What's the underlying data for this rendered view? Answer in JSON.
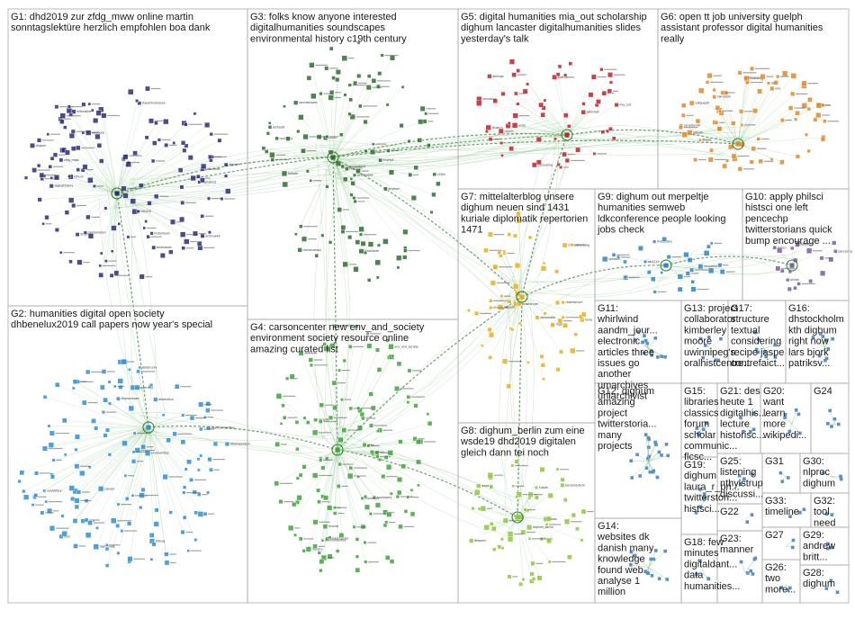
{
  "colors": {
    "border": "#aaaaaa",
    "edge": "#8dc68d",
    "edge_dark": "#2f7a2f",
    "g1": "#2b2d7a",
    "g2": "#2f8fd6",
    "g3": "#2f6e2f",
    "g4": "#3fa53a",
    "g5": "#c0202a",
    "g6": "#e08a2a",
    "g7": "#e6b21e",
    "g8": "#8cc83c",
    "g9": "#2e86c1",
    "g10": "#7a5ca0",
    "misc": "#5b8fc7"
  },
  "groups": [
    {
      "id": "g1",
      "title": [
        "G1: dhd2019 zur zfdg_mww online martin",
        "sonntagslektüre herzlich empfohlen boa dank"
      ]
    },
    {
      "id": "g2",
      "title": [
        "G2: humanities digital open society",
        "dhbenelux2019 call papers now year's special"
      ]
    },
    {
      "id": "g3",
      "title": [
        "G3: folks know anyone interested",
        "digitalhumanities soundscapes",
        "environmental history c19th century"
      ]
    },
    {
      "id": "g4",
      "title": [
        "G4: carsoncenter new env_and_society",
        "environment society resource online",
        "amazing curated list"
      ]
    },
    {
      "id": "g5",
      "title": [
        "G5: digital humanities mia_out scholarship",
        "dighum lancaster digitalhumanities slides",
        "yesterday's talk"
      ]
    },
    {
      "id": "g6",
      "title": [
        "G6: open tt job university guelph",
        "assistant professor digital humanities",
        "really"
      ]
    },
    {
      "id": "g7",
      "title": [
        "G7: mittelalterblog unsere",
        "dighum neuen sind 1431",
        "kuriale diplomatik repertorien",
        "1471"
      ]
    },
    {
      "id": "g8",
      "title": [
        "G8: dighum_berlin zum eine",
        "wsde19 dhd2019 digitalen",
        "gleich dann tei noch"
      ]
    },
    {
      "id": "g9",
      "title": [
        "G9: dighum out merpeltje",
        "humanities semweb",
        "ldkconference people looking",
        "jobs check"
      ]
    },
    {
      "id": "g10",
      "title": [
        "G10: apply philsci",
        "histsci one left",
        "pencechp",
        "twitterstorians quick",
        "bump encourage ..."
      ]
    },
    {
      "id": "g11",
      "title": [
        "G11:",
        "whirlwind",
        "aandm_jour...",
        "electronic",
        "articles three",
        "issues go",
        "another",
        "umarchives",
        "uniarchivist"
      ]
    },
    {
      "id": "g12",
      "title": [
        "G12: dighum",
        "amazing",
        "project",
        "twitterstoria...",
        "many",
        "projects"
      ]
    },
    {
      "id": "g13",
      "title": [
        "G13: project",
        "collaborator",
        "kimberley",
        "moore",
        "uwinnipeg's",
        "oralhistcentre..."
      ]
    },
    {
      "id": "g14",
      "title": [
        "G14:",
        "websites dk",
        "danish many",
        "knowledge",
        "found web",
        "analyse 1",
        "million"
      ]
    },
    {
      "id": "g15",
      "title": [
        "G15:",
        "libraries",
        "classics",
        "forum",
        "scholar",
        "communic...",
        "flcsc..."
      ]
    },
    {
      "id": "g16",
      "title": [
        "G16:",
        "dhstockholm",
        "kth dighum",
        "right now",
        "lars bjork",
        "patriksv..."
      ]
    },
    {
      "id": "g17",
      "title": [
        "G17:",
        "structure",
        "textual",
        "considering",
        "recipe jaspe",
        "contrefaict..."
      ]
    },
    {
      "id": "g18",
      "title": [
        "G18: few",
        "minutes",
        "digitaldant...",
        "data",
        "humanities..."
      ]
    },
    {
      "id": "g19",
      "title": [
        "G19:",
        "dighum",
        "laura_r_pri...",
        "twitterstori...",
        "histsci..."
      ]
    },
    {
      "id": "g20",
      "title": [
        "G20:",
        "want",
        "learn",
        "more",
        "wikipedi..."
      ]
    },
    {
      "id": "g21",
      "title": [
        "G21: des",
        "heute 1",
        "digitalhis...",
        "lecture",
        "historisc..."
      ]
    },
    {
      "id": "g22",
      "title": [
        "G22"
      ]
    },
    {
      "id": "g23",
      "title": [
        "G23:",
        "manner"
      ]
    },
    {
      "id": "g24",
      "title": [
        "G24"
      ]
    },
    {
      "id": "g25",
      "title": [
        "G25:",
        "listening",
        "nthylstrup",
        "discussi..."
      ]
    },
    {
      "id": "g26",
      "title": [
        "G26:",
        "two",
        "more..."
      ]
    },
    {
      "id": "g27",
      "title": [
        "G27"
      ]
    },
    {
      "id": "g28",
      "title": [
        "G28:",
        "dighum"
      ]
    },
    {
      "id": "g29",
      "title": [
        "G29:",
        "andrew",
        "britt..."
      ]
    },
    {
      "id": "g30",
      "title": [
        "G30:",
        "nlproc",
        "dighum"
      ]
    },
    {
      "id": "g31",
      "title": [
        "G31"
      ]
    },
    {
      "id": "g32",
      "title": [
        "G32:",
        "tool",
        "need"
      ]
    },
    {
      "id": "g33",
      "title": [
        "G33:",
        "timeline"
      ]
    }
  ],
  "node_labels": {
    "g1": [
      "dhd2019",
      "zfdg_mww",
      "digitalhist",
      "dhd2018",
      "historikerin",
      "dighum",
      "dhwien",
      "digitalhistory",
      "maschinenlesen",
      "dhwuerzburg",
      "germanisten",
      "textwissen",
      "archivwelt",
      "kulturerbe",
      "fdhuni",
      "mittelalter"
    ],
    "g2": [
      "dhbenelux",
      "openhumanities",
      "kbnl",
      "dhamsterdam",
      "uvahistory",
      "huygensing",
      "dighumlab",
      "clariah",
      "tilburg",
      "leidenuniv",
      "dhgroningen",
      "ehumanities"
    ],
    "g3": [
      "soundscapes",
      "envhist",
      "c19th",
      "histoiredh",
      "folksdh",
      "digitalharbour",
      "nichehist",
      "archivist",
      "landscapes",
      "historian",
      "envhum",
      "rachelcarson"
    ],
    "g4": [
      "carsoncenter",
      "env_and_society",
      "envhistory",
      "curatedlist",
      "munichrcc",
      "ecohist",
      "histenv",
      "envhumanities",
      "arcadia"
    ],
    "g5": [
      "mia_out",
      "lancaster",
      "ucrel",
      "dhlancs",
      "spatialhum",
      "corpusling",
      "dhkings",
      "oxforddh"
    ],
    "g6": [
      "uofguelph",
      "jobsdh",
      "dhjobs",
      "cwrcwork",
      "dhsi",
      "canadiandh",
      "dhcanada",
      "uvic"
    ],
    "g7": [
      "mittelalterblog",
      "repertorium",
      "diplomatik",
      "kurie",
      "monasterium",
      "mgh",
      "regesta"
    ],
    "g8": [
      "dighum_berlin",
      "wsde19",
      "teiconsortium",
      "hubdh",
      "bbaw",
      "fubdh",
      "dhberlin"
    ],
    "g9": [
      "merpeltje",
      "semweb",
      "ldk2019",
      "linkeddata"
    ],
    "g10": [
      "philsci",
      "histsci",
      "pencechp"
    ],
    "misc": [
      "umarchives",
      "kimberley",
      "dkweb",
      "dhstockholm",
      "laura_r",
      "nthylstrup"
    ]
  }
}
